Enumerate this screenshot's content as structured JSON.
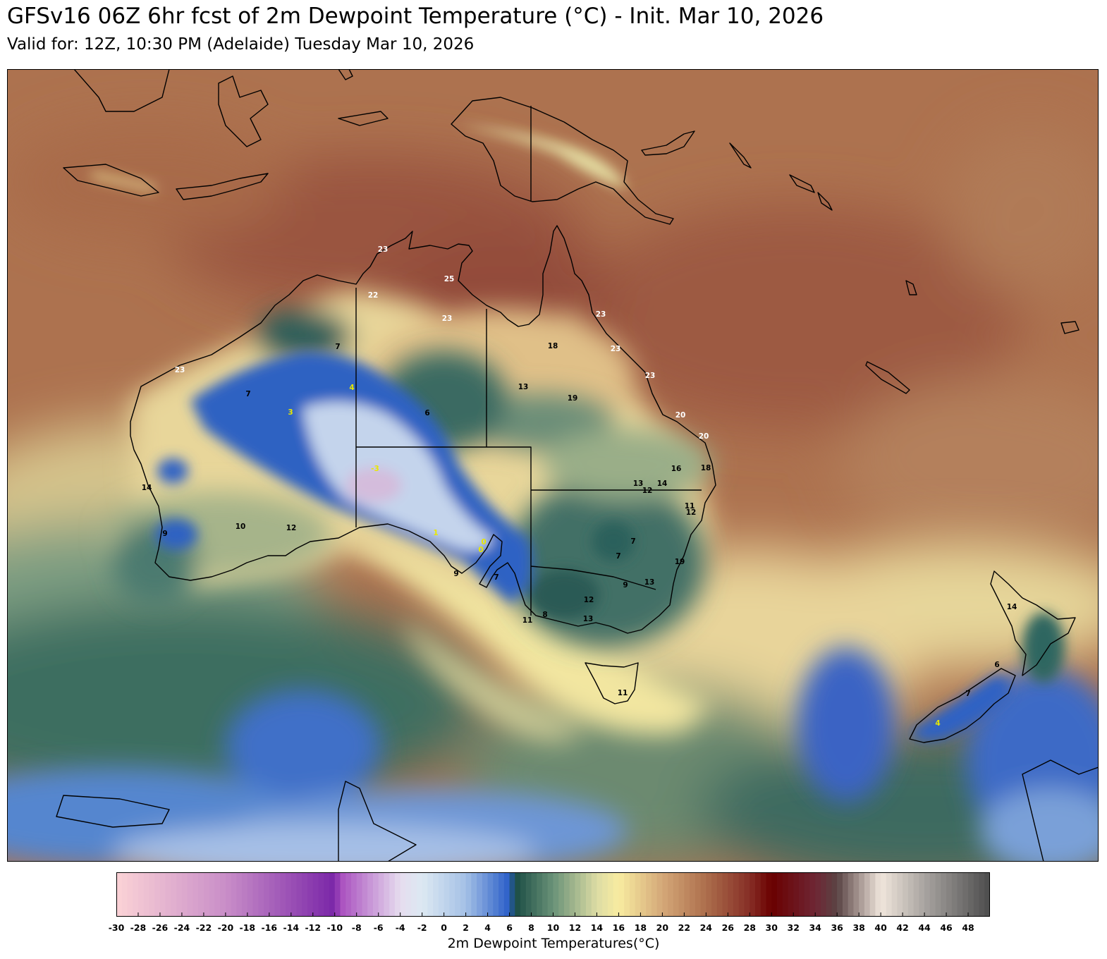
{
  "header": {
    "title": "GFSv16 06Z 6hr fcst of 2m Dewpoint Temperature (°C) - Init. Mar 10, 2026",
    "subtitle": "Valid for: 12Z, 10:30 PM (Adelaide) Tuesday Mar 10, 2026"
  },
  "colorbar": {
    "label": "2m Dewpoint Temperatures(°C)",
    "min": -30,
    "max": 50,
    "ticks": [
      "-30",
      "-28",
      "-26",
      "-24",
      "-22",
      "-20",
      "-18",
      "-16",
      "-14",
      "-12",
      "-10",
      "-8",
      "-6",
      "-4",
      "-2",
      "0",
      "2",
      "4",
      "6",
      "8",
      "10",
      "12",
      "14",
      "16",
      "18",
      "20",
      "22",
      "24",
      "26",
      "28",
      "30",
      "32",
      "34",
      "36",
      "38",
      "40",
      "42",
      "44",
      "46",
      "48"
    ],
    "stops": [
      {
        "value": -30,
        "color": "#fbd3d6"
      },
      {
        "value": -20,
        "color": "#c98ec8"
      },
      {
        "value": -10,
        "color": "#7a26a8"
      },
      {
        "value": -9.5,
        "color": "#a94fbf"
      },
      {
        "value": -4,
        "color": "#e6dcee"
      },
      {
        "value": -2,
        "color": "#dce8f2"
      },
      {
        "value": 2,
        "color": "#a4c0e6"
      },
      {
        "value": 6,
        "color": "#2a5ec8"
      },
      {
        "value": 6.5,
        "color": "#1a4c44"
      },
      {
        "value": 10,
        "color": "#6a9278"
      },
      {
        "value": 14,
        "color": "#dcdca4"
      },
      {
        "value": 16,
        "color": "#f8eca0"
      },
      {
        "value": 20,
        "color": "#d4a878"
      },
      {
        "value": 24,
        "color": "#ac6e4c"
      },
      {
        "value": 28,
        "color": "#862e26"
      },
      {
        "value": 30,
        "color": "#6a0000"
      },
      {
        "value": 34,
        "color": "#6e2634"
      },
      {
        "value": 36,
        "color": "#5a4444"
      },
      {
        "value": 40,
        "color": "#f0e6dc"
      },
      {
        "value": 44,
        "color": "#a8a4a0"
      },
      {
        "value": 50,
        "color": "#4c4c4c"
      }
    ]
  },
  "stations": [
    {
      "label": "23",
      "color": "#ffffff"
    },
    {
      "label": "25",
      "color": "#ffffff"
    },
    {
      "label": "22",
      "color": "#ffffff"
    },
    {
      "label": "23",
      "color": "#ffffff"
    },
    {
      "label": "23",
      "color": "#ffffff"
    },
    {
      "label": "23",
      "color": "#ffffff"
    },
    {
      "label": "23",
      "color": "#ffffff"
    },
    {
      "label": "23",
      "color": "#ffffff"
    },
    {
      "label": "20",
      "color": "#ffffff"
    },
    {
      "label": "20",
      "color": "#ffffff"
    },
    {
      "label": "18",
      "color": "#000000"
    },
    {
      "label": "7",
      "color": "#000000"
    },
    {
      "label": "4",
      "color": "#e8e800"
    },
    {
      "label": "3",
      "color": "#e8e800"
    },
    {
      "label": "7",
      "color": "#000000"
    },
    {
      "label": "6",
      "color": "#000000"
    },
    {
      "label": "13",
      "color": "#000000"
    },
    {
      "label": "19",
      "color": "#000000"
    },
    {
      "label": "-3",
      "color": "#e8e800"
    },
    {
      "label": "16",
      "color": "#000000"
    },
    {
      "label": "18",
      "color": "#000000"
    },
    {
      "label": "13",
      "color": "#000000"
    },
    {
      "label": "14",
      "color": "#000000"
    },
    {
      "label": "12",
      "color": "#000000"
    },
    {
      "label": "11",
      "color": "#000000"
    },
    {
      "label": "12",
      "color": "#000000"
    },
    {
      "label": "14",
      "color": "#000000"
    },
    {
      "label": "10",
      "color": "#000000"
    },
    {
      "label": "12",
      "color": "#000000"
    },
    {
      "label": "9",
      "color": "#000000"
    },
    {
      "label": "1",
      "color": "#e8e800"
    },
    {
      "label": "0",
      "color": "#e8e800"
    },
    {
      "label": "0",
      "color": "#e8e800"
    },
    {
      "label": "7",
      "color": "#000000"
    },
    {
      "label": "7",
      "color": "#000000"
    },
    {
      "label": "9",
      "color": "#000000"
    },
    {
      "label": "7",
      "color": "#000000"
    },
    {
      "label": "19",
      "color": "#000000"
    },
    {
      "label": "9",
      "color": "#000000"
    },
    {
      "label": "13",
      "color": "#000000"
    },
    {
      "label": "12",
      "color": "#000000"
    },
    {
      "label": "11",
      "color": "#000000"
    },
    {
      "label": "8",
      "color": "#000000"
    },
    {
      "label": "13",
      "color": "#000000"
    },
    {
      "label": "11",
      "color": "#000000"
    },
    {
      "label": "14",
      "color": "#000000"
    },
    {
      "label": "6",
      "color": "#000000"
    },
    {
      "label": "7",
      "color": "#000000"
    },
    {
      "label": "4",
      "color": "#e8e800"
    }
  ]
}
